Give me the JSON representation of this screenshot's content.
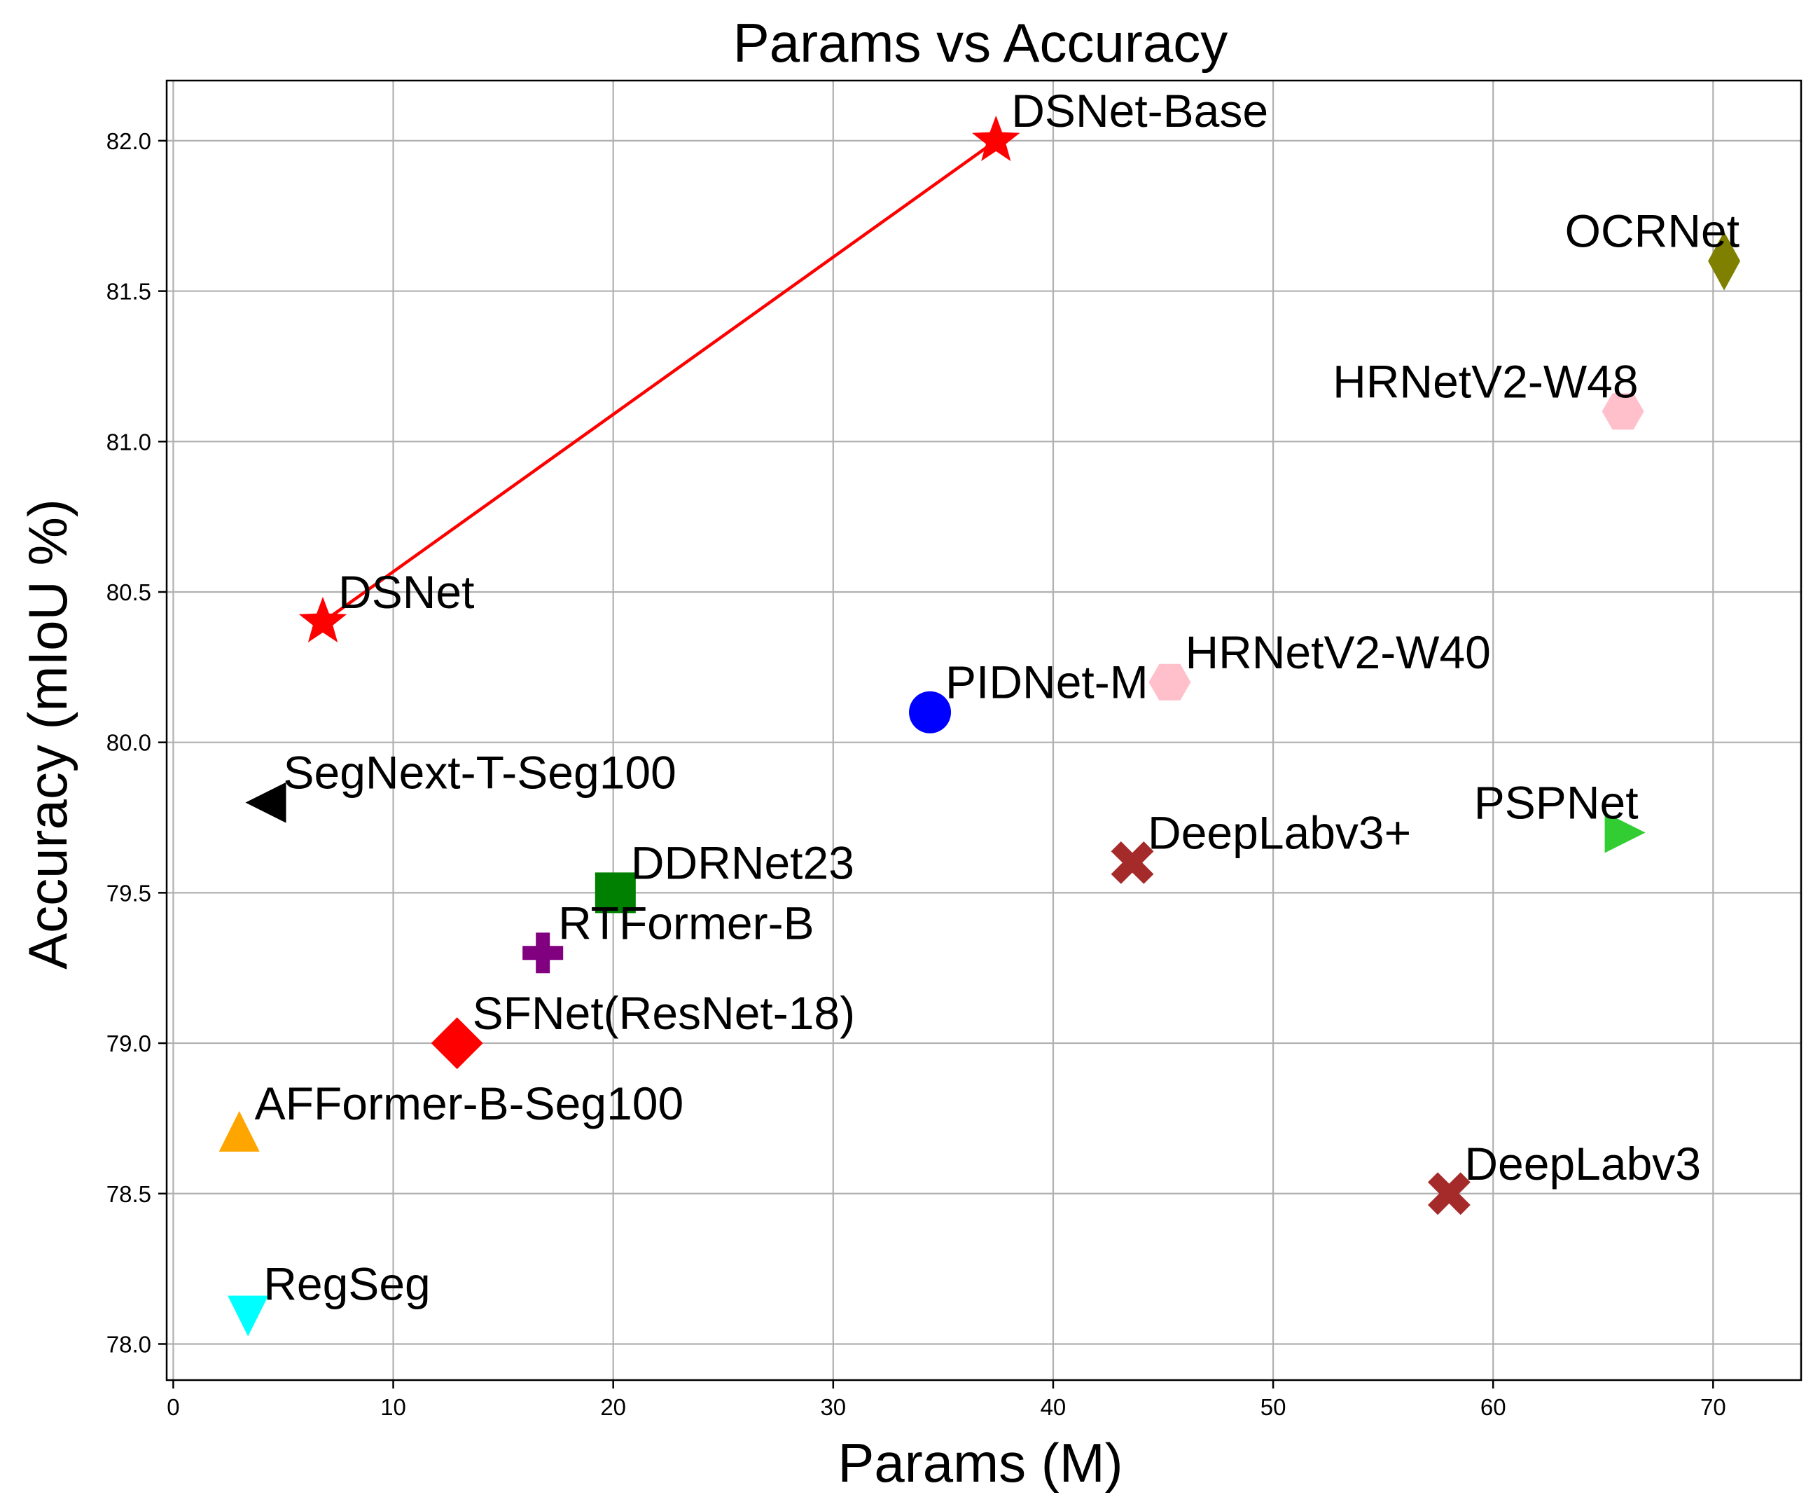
{
  "chart_data": {
    "type": "scatter",
    "title": "Params vs Accuracy",
    "xlabel": "Params (M)",
    "ylabel": "Accuracy (mIoU %)",
    "xlim": [
      -0.3,
      74
    ],
    "ylim": [
      77.88,
      82.2
    ],
    "x_ticks": [
      0,
      10,
      20,
      30,
      40,
      50,
      60,
      70
    ],
    "x_tick_labels": [
      "0",
      "10",
      "20",
      "30",
      "40",
      "50",
      "60",
      "70"
    ],
    "y_ticks": [
      78.0,
      78.5,
      79.0,
      79.5,
      80.0,
      80.5,
      81.0,
      81.5,
      82.0
    ],
    "y_tick_labels": [
      "78.0",
      "78.5",
      "79.0",
      "79.5",
      "80.0",
      "80.5",
      "81.0",
      "81.5",
      "82.0"
    ],
    "grid": true,
    "points": [
      {
        "name": "DSNet",
        "x": 6.8,
        "y": 80.4,
        "marker": "star",
        "color": "#ff0000",
        "label_pos": "upper-right"
      },
      {
        "name": "DSNet-Base",
        "x": 37.4,
        "y": 82.0,
        "marker": "star",
        "color": "#ff0000",
        "label_pos": "upper-right"
      },
      {
        "name": "OCRNet",
        "x": 70.5,
        "y": 81.6,
        "marker": "thin-diamond",
        "color": "#808000",
        "label_pos": "upper-left"
      },
      {
        "name": "HRNetV2-W48",
        "x": 65.9,
        "y": 81.1,
        "marker": "hexagon",
        "color": "#ffc0cb",
        "label_pos": "upper-left"
      },
      {
        "name": "PIDNet-M",
        "x": 34.4,
        "y": 80.1,
        "marker": "circle",
        "color": "#0000ff",
        "label_pos": "upper-right"
      },
      {
        "name": "HRNetV2-W40",
        "x": 45.3,
        "y": 80.2,
        "marker": "hexagon",
        "color": "#ffc0cb",
        "label_pos": "upper-right"
      },
      {
        "name": "SegNext-T-Seg100",
        "x": 4.3,
        "y": 79.8,
        "marker": "triangle-left",
        "color": "#000000",
        "label_pos": "upper-right"
      },
      {
        "name": "DDRNet23",
        "x": 20.1,
        "y": 79.5,
        "marker": "square",
        "color": "#008000",
        "label_pos": "upper-right"
      },
      {
        "name": "DeepLabv3+",
        "x": 43.6,
        "y": 79.6,
        "marker": "x-filled",
        "color": "#a52a2a",
        "label_pos": "upper-right"
      },
      {
        "name": "PSPNet",
        "x": 65.9,
        "y": 79.7,
        "marker": "triangle-right",
        "color": "#32cd32",
        "label_pos": "upper-left"
      },
      {
        "name": "RTFormer-B",
        "x": 16.8,
        "y": 79.3,
        "marker": "plus-filled",
        "color": "#800080",
        "label_pos": "upper-right"
      },
      {
        "name": "SFNet(ResNet-18)",
        "x": 12.9,
        "y": 79.0,
        "marker": "diamond",
        "color": "#ff0000",
        "label_pos": "upper-right"
      },
      {
        "name": "AFFormer-B-Seg100",
        "x": 3.0,
        "y": 78.7,
        "marker": "triangle-up",
        "color": "#ffa500",
        "label_pos": "upper-right"
      },
      {
        "name": "DeepLabv3",
        "x": 58.0,
        "y": 78.5,
        "marker": "x-filled",
        "color": "#a52a2a",
        "label_pos": "upper-right"
      },
      {
        "name": "RegSeg",
        "x": 3.4,
        "y": 78.1,
        "marker": "triangle-down",
        "color": "#00ffff",
        "label_pos": "upper-right"
      }
    ],
    "lines": [
      {
        "from": "DSNet",
        "to": "DSNet-Base",
        "color": "#ff0000"
      }
    ]
  }
}
